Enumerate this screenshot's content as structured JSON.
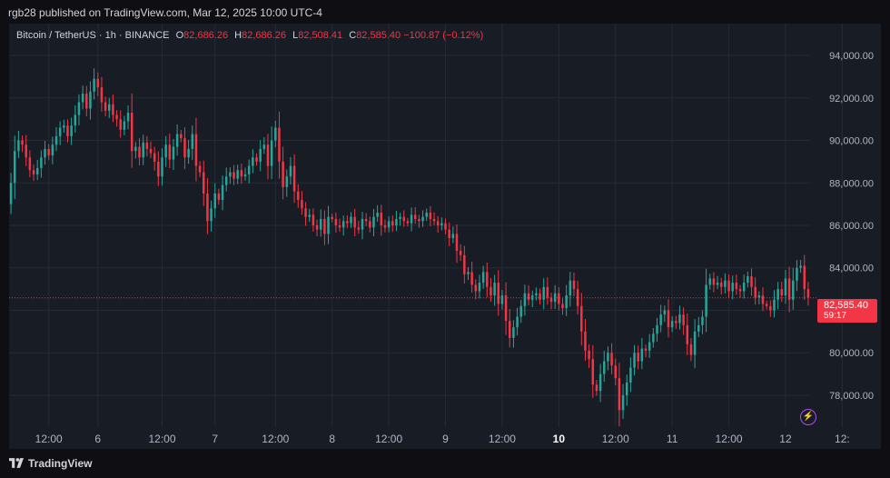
{
  "header": {
    "published": "rgb28 published on TradingView.com, Mar 12, 2025 10:00 UTC-4"
  },
  "legend": {
    "symbol": "Bitcoin / TetherUS · 1h · BINANCE",
    "o_label": "O",
    "o_value": "82,686.26",
    "h_label": "H",
    "h_value": "82,686.26",
    "l_label": "L",
    "l_value": "82,508.41",
    "c_label": "C",
    "c_value": "82,585.40",
    "change": "−100.87 (−0.12%)"
  },
  "price_tag": {
    "price": "82,585.40",
    "countdown": "59:17"
  },
  "footer": {
    "brand": "TradingView"
  },
  "icons": {
    "footer_logo": "tradingview-logo-icon",
    "action": "lightning-icon"
  },
  "colors": {
    "up": "#26a69a",
    "down": "#f23645",
    "background": "#181c25",
    "grid": "#262a35",
    "axis_text": "#b2b5be",
    "accent": "#b24bf3"
  },
  "chart_data": {
    "type": "candlestick",
    "symbol": "Bitcoin / TetherUS",
    "interval": "1h",
    "ylim": [
      76500,
      95500
    ],
    "y_ticks": [
      {
        "value": 78000,
        "label": "78,000.00"
      },
      {
        "value": 80000,
        "label": "80,000.00"
      },
      {
        "value": 82000,
        "label": "82,000.00"
      },
      {
        "value": 84000,
        "label": "84,000.00"
      },
      {
        "value": 86000,
        "label": "86,000.00"
      },
      {
        "value": 88000,
        "label": "88,000.00"
      },
      {
        "value": 90000,
        "label": "90,000.00"
      },
      {
        "value": 92000,
        "label": "92,000.00"
      },
      {
        "value": 94000,
        "label": "94,000.00"
      }
    ],
    "x_ticks": [
      {
        "index": 10,
        "label": "12:00",
        "bold": false
      },
      {
        "index": 23,
        "label": "6",
        "bold": false
      },
      {
        "index": 40,
        "label": "12:00",
        "bold": false
      },
      {
        "index": 54,
        "label": "7",
        "bold": false
      },
      {
        "index": 70,
        "label": "12:00",
        "bold": false
      },
      {
        "index": 85,
        "label": "8",
        "bold": false
      },
      {
        "index": 100,
        "label": "12:00",
        "bold": false
      },
      {
        "index": 115,
        "label": "9",
        "bold": false
      },
      {
        "index": 130,
        "label": "12:00",
        "bold": false
      },
      {
        "index": 145,
        "label": "10",
        "bold": true
      },
      {
        "index": 160,
        "label": "12:00",
        "bold": false
      },
      {
        "index": 175,
        "label": "11",
        "bold": false
      },
      {
        "index": 190,
        "label": "12:00",
        "bold": false
      },
      {
        "index": 205,
        "label": "12",
        "bold": false
      },
      {
        "index": 220,
        "label": "12:",
        "bold": false
      }
    ],
    "last_price": 82585.4,
    "closes": [
      88000,
      89500,
      90000,
      89800,
      89200,
      88600,
      88400,
      88700,
      89200,
      89600,
      89300,
      89800,
      90200,
      90600,
      90700,
      90200,
      90700,
      91200,
      91800,
      92200,
      91500,
      92300,
      92900,
      92500,
      91800,
      91400,
      91700,
      91200,
      91000,
      90500,
      90900,
      91300,
      89500,
      89700,
      89200,
      89900,
      89600,
      89400,
      89000,
      88300,
      89200,
      89800,
      89100,
      89700,
      90300,
      90100,
      89200,
      89600,
      90300,
      88800,
      88500,
      87500,
      86200,
      86800,
      87500,
      87200,
      87900,
      88300,
      88500,
      88200,
      88600,
      88300,
      88400,
      88800,
      89200,
      89000,
      89600,
      89800,
      88800,
      90000,
      90600,
      89000,
      87800,
      88300,
      88800,
      87600,
      87200,
      86800,
      86400,
      86500,
      86000,
      85800,
      86300,
      85600,
      86400,
      86300,
      86000,
      85900,
      86200,
      86100,
      86400,
      85900,
      85800,
      86300,
      86200,
      85900,
      86400,
      86600,
      86000,
      85900,
      86200,
      86000,
      86300,
      86400,
      86200,
      86100,
      86500,
      86300,
      86200,
      86400,
      86600,
      86300,
      86200,
      86000,
      86100,
      85800,
      85400,
      85600,
      84800,
      84600,
      83700,
      83800,
      83200,
      82900,
      83300,
      83800,
      83100,
      82700,
      83300,
      82300,
      82700,
      81500,
      80700,
      81200,
      81700,
      82200,
      82800,
      82500,
      82700,
      82800,
      82500,
      83100,
      82600,
      82400,
      82800,
      82300,
      82100,
      82700,
      83400,
      83000,
      82200,
      81000,
      80100,
      79700,
      78500,
      78200,
      79000,
      79600,
      80000,
      79400,
      78800,
      77300,
      78000,
      78600,
      79300,
      80000,
      79600,
      80200,
      80100,
      80500,
      80900,
      81300,
      81800,
      82000,
      81200,
      81500,
      81400,
      81800,
      81300,
      80400,
      79900,
      81000,
      81300,
      81700,
      83200,
      83500,
      83200,
      83300,
      83100,
      83400,
      82900,
      83300,
      83000,
      82900,
      83300,
      83600,
      83100,
      82600,
      82700,
      82300,
      82200,
      82000,
      82500,
      83000,
      82700,
      83500,
      82500,
      83400,
      84000,
      84100,
      83000,
      82600
    ],
    "opens": [
      87000,
      88000,
      89500,
      90000,
      89800,
      89200,
      88600,
      88400,
      88700,
      89200,
      89600,
      89300,
      89800,
      90200,
      90600,
      90700,
      90200,
      90700,
      91200,
      91800,
      92200,
      91500,
      92300,
      92900,
      92500,
      91800,
      91400,
      91700,
      91200,
      91000,
      90500,
      90900,
      91300,
      89500,
      89700,
      89200,
      89900,
      89600,
      89400,
      89000,
      88300,
      89200,
      89800,
      89100,
      89700,
      90300,
      90100,
      89200,
      89600,
      90300,
      88800,
      88500,
      87500,
      86200,
      86800,
      87500,
      87200,
      87900,
      88300,
      88500,
      88200,
      88600,
      88300,
      88400,
      88800,
      89200,
      89000,
      89600,
      89800,
      88800,
      90000,
      90600,
      89000,
      87800,
      88300,
      88800,
      87600,
      87200,
      86800,
      86400,
      86500,
      86000,
      85800,
      86300,
      85600,
      86400,
      86300,
      86000,
      85900,
      86200,
      86100,
      86400,
      85900,
      85800,
      86300,
      86200,
      85900,
      86400,
      86600,
      86000,
      85900,
      86200,
      86000,
      86300,
      86400,
      86200,
      86100,
      86500,
      86300,
      86200,
      86400,
      86600,
      86300,
      86200,
      86000,
      86100,
      85800,
      85400,
      85600,
      84800,
      84600,
      83700,
      83800,
      83200,
      82900,
      83300,
      83800,
      83100,
      82700,
      83300,
      82300,
      82700,
      81500,
      80700,
      81200,
      81700,
      82200,
      82800,
      82500,
      82700,
      82800,
      82500,
      83100,
      82600,
      82400,
      82800,
      82300,
      82100,
      82700,
      83400,
      83000,
      82200,
      81000,
      80100,
      79700,
      78500,
      78200,
      79000,
      79600,
      80000,
      79400,
      78800,
      77300,
      78000,
      78600,
      79300,
      80000,
      79600,
      80200,
      80100,
      80500,
      80900,
      81300,
      81800,
      82000,
      81200,
      81500,
      81400,
      81800,
      81300,
      80400,
      79900,
      81000,
      81300,
      81700,
      83200,
      83500,
      83200,
      83300,
      83100,
      83400,
      82900,
      83300,
      83000,
      82900,
      83300,
      83600,
      83100,
      82600,
      82700,
      82300,
      82200,
      82000,
      82500,
      83000,
      82700,
      83500,
      82500,
      83400,
      84000,
      84100,
      83000
    ]
  }
}
